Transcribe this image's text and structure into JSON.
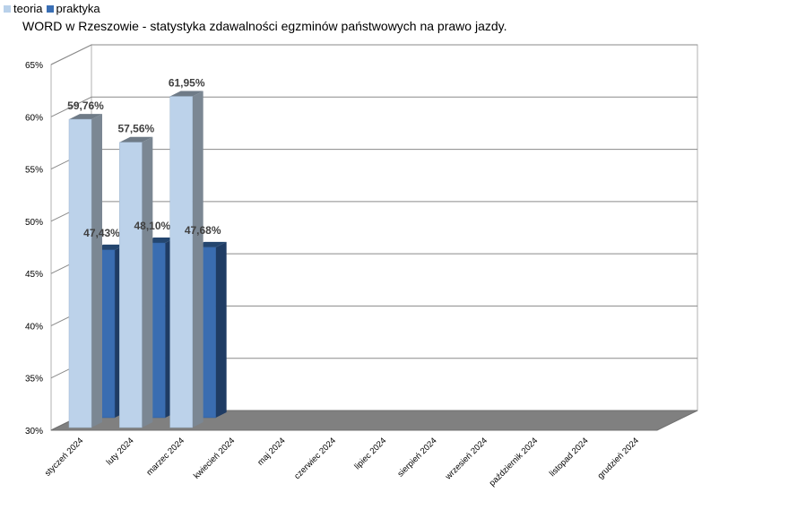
{
  "chart_data": {
    "type": "bar",
    "title": "WORD w Rzeszowie - statystyka zdawalności egzminów państwowych na prawo jazdy.",
    "categories": [
      "styczeń 2024",
      "luty 2024",
      "marzec 2024",
      "kwiecień 2024",
      "maj 2024",
      "czerwiec 2024",
      "lipiec 2024",
      "sierpień 2024",
      "wrzesień 2024",
      "październik 2024",
      "listopad 2024",
      "grudzień 2024"
    ],
    "series": [
      {
        "name": "teoria",
        "values": [
          59.76,
          57.56,
          61.95,
          null,
          null,
          null,
          null,
          null,
          null,
          null,
          null,
          null
        ],
        "labels": [
          "59,76%",
          "57,56%",
          "61,95%"
        ]
      },
      {
        "name": "praktyka",
        "values": [
          47.43,
          48.1,
          47.68,
          null,
          null,
          null,
          null,
          null,
          null,
          null,
          null,
          null
        ],
        "labels": [
          "47,43%",
          "48,10%",
          "47,68%"
        ]
      }
    ],
    "yticks": [
      "30%",
      "35%",
      "40%",
      "45%",
      "50%",
      "55%",
      "60%",
      "65%"
    ],
    "ylim": [
      30,
      65
    ],
    "grid": true,
    "legend": "top-left",
    "colors": {
      "teoria": "#b9d1ea",
      "praktyka": "#3a6fb5"
    }
  }
}
